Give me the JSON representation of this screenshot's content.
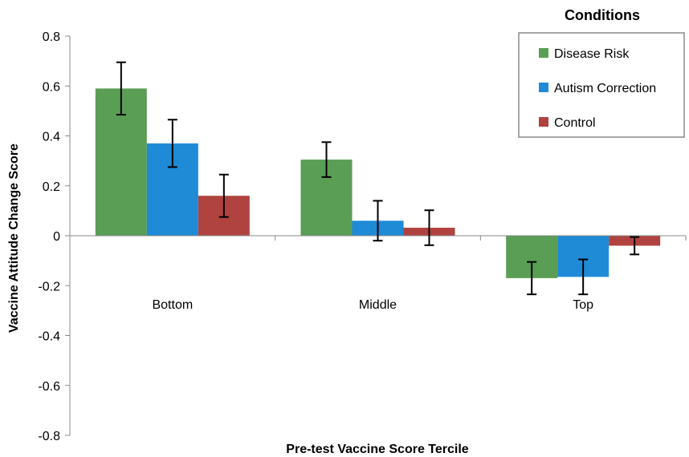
{
  "chart_data": {
    "type": "bar",
    "title": "",
    "xlabel": "Pre-test Vaccine Score Tercile",
    "ylabel": "Vaccine Attitude Change Score",
    "ylim": [
      -0.8,
      0.8
    ],
    "yticks": [
      0.8,
      0.6,
      0.4,
      0.2,
      0,
      -0.2,
      -0.4,
      -0.6,
      -0.8
    ],
    "ytick_labels": [
      "0.8",
      "0.6",
      "0.4",
      "0.2",
      "0",
      "-0.2",
      "-0.4",
      "-0.6",
      "-0.8"
    ],
    "categories": [
      "Bottom",
      "Middle",
      "Top"
    ],
    "legend_title": "Conditions",
    "legend_position": "top-right",
    "grid": false,
    "series": [
      {
        "name": "Disease Risk",
        "color": "#5a9e55",
        "values": [
          0.59,
          0.305,
          -0.17
        ],
        "errors": [
          0.105,
          0.07,
          0.065
        ]
      },
      {
        "name": "Autism Correction",
        "color": "#1f8ad6",
        "values": [
          0.37,
          0.06,
          -0.165
        ],
        "errors": [
          0.095,
          0.08,
          0.07
        ]
      },
      {
        "name": "Control",
        "color": "#b0433f",
        "values": [
          0.16,
          0.032,
          -0.04
        ],
        "errors": [
          0.085,
          0.07,
          0.035
        ]
      }
    ]
  }
}
